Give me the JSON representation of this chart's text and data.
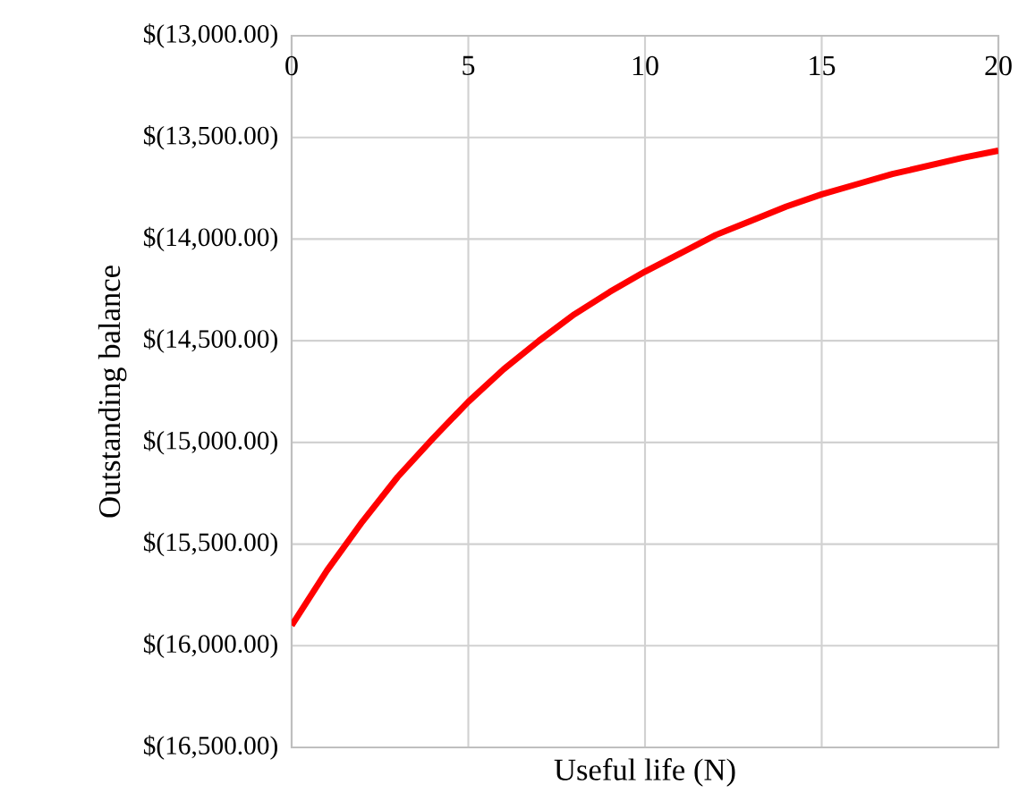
{
  "chart_data": {
    "type": "line",
    "xlabel": "Useful life (N)",
    "ylabel": "Outstanding balance",
    "x": [
      0,
      1,
      2,
      3,
      4,
      5,
      6,
      7,
      8,
      9,
      10,
      11,
      12,
      13,
      14,
      15,
      16,
      17,
      18,
      19,
      20
    ],
    "series": [
      {
        "color": "#ff0000",
        "values": [
          -15900,
          -15630,
          -15390,
          -15170,
          -14980,
          -14800,
          -14640,
          -14500,
          -14370,
          -14260,
          -14160,
          -14070,
          -13980,
          -13910,
          -13840,
          -13780,
          -13730,
          -13680,
          -13640,
          -13600,
          -13565
        ]
      }
    ],
    "xlim": [
      0,
      20
    ],
    "xticks": [
      0,
      5,
      10,
      15,
      20
    ],
    "ylim": [
      -16500,
      -13000
    ],
    "yticks": [
      {
        "value": -16500,
        "label": "$(16,500.00)"
      },
      {
        "value": -16000,
        "label": "$(16,000.00)"
      },
      {
        "value": -15500,
        "label": "$(15,500.00)"
      },
      {
        "value": -15000,
        "label": "$(15,000.00)"
      },
      {
        "value": -14500,
        "label": "$(14,500.00)"
      },
      {
        "value": -14000,
        "label": "$(14,000.00)"
      },
      {
        "value": -13500,
        "label": "$(13,500.00)"
      },
      {
        "value": -13000,
        "label": "$(13,000.00)"
      }
    ],
    "grid": true,
    "marker": "none",
    "line_style": "solid"
  }
}
